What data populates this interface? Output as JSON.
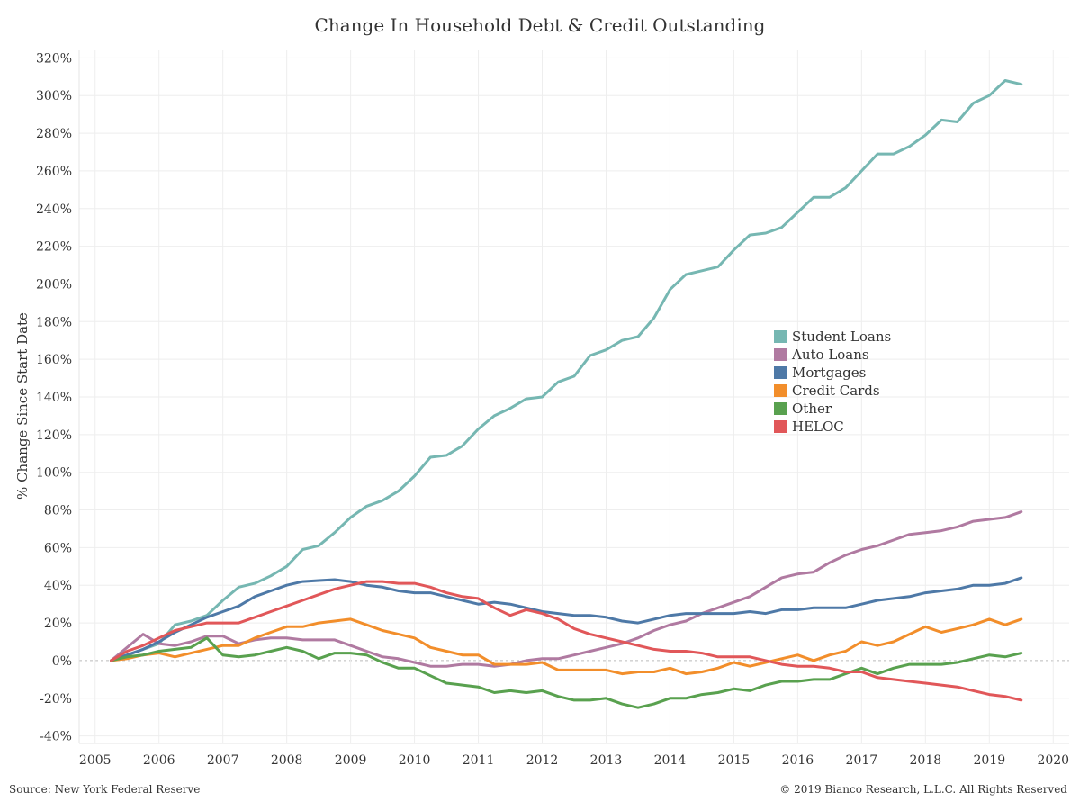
{
  "title": "Change In Household Debt & Credit Outstanding",
  "source": "Source: New York Federal Reserve",
  "copyright": "© 2019 Bianco Research, L.L.C. All Rights Reserved",
  "chart_data": {
    "type": "line",
    "title": "Change In Household Debt & Credit Outstanding",
    "ylabel": "% Change Since Start Date",
    "xlabel": "",
    "xlim": [
      2004.75,
      2020.25
    ],
    "ylim": [
      -44,
      324
    ],
    "x_ticks": [
      "2005",
      "2006",
      "2007",
      "2008",
      "2009",
      "2010",
      "2011",
      "2012",
      "2013",
      "2014",
      "2015",
      "2016",
      "2017",
      "2018",
      "2019",
      "2020"
    ],
    "y_ticks": [
      "320%",
      "300%",
      "280%",
      "260%",
      "240%",
      "220%",
      "200%",
      "180%",
      "160%",
      "140%",
      "120%",
      "100%",
      "80%",
      "60%",
      "40%",
      "20%",
      "0%",
      "-20%",
      "-40%"
    ],
    "grid": true,
    "legend_position": "right-middle",
    "series": [
      {
        "name": "Student Loans",
        "color": "#76b7b2",
        "x": [
          2005.25,
          2005.5,
          2005.75,
          2006,
          2006.25,
          2006.5,
          2006.75,
          2007,
          2007.25,
          2007.5,
          2007.75,
          2008,
          2008.25,
          2008.5,
          2008.75,
          2009,
          2009.25,
          2009.5,
          2009.75,
          2010,
          2010.25,
          2010.5,
          2010.75,
          2011,
          2011.25,
          2011.5,
          2011.75,
          2012,
          2012.25,
          2012.5,
          2012.75,
          2013,
          2013.25,
          2013.5,
          2013.75,
          2014,
          2014.25,
          2014.5,
          2014.75,
          2015,
          2015.25,
          2015.5,
          2015.75,
          2016,
          2016.25,
          2016.5,
          2016.75,
          2017,
          2017.25,
          2017.5,
          2017.75,
          2018,
          2018.25,
          2018.5,
          2018.75,
          2019,
          2019.25,
          2019.5
        ],
        "y": [
          0,
          3,
          6,
          9,
          19,
          21,
          24,
          32,
          39,
          41,
          45,
          50,
          59,
          61,
          68,
          76,
          82,
          85,
          90,
          98,
          108,
          109,
          114,
          123,
          130,
          134,
          139,
          140,
          148,
          151,
          162,
          165,
          170,
          172,
          182,
          197,
          205,
          207,
          209,
          218,
          226,
          227,
          230,
          238,
          246,
          246,
          251,
          260,
          269,
          269,
          273,
          279,
          287,
          286,
          296,
          300,
          308,
          306
        ]
      },
      {
        "name": "Auto Loans",
        "color": "#b07aa1",
        "x": [
          2005.25,
          2005.5,
          2005.75,
          2006,
          2006.25,
          2006.5,
          2006.75,
          2007,
          2007.25,
          2007.5,
          2007.75,
          2008,
          2008.25,
          2008.5,
          2008.75,
          2009,
          2009.25,
          2009.5,
          2009.75,
          2010,
          2010.25,
          2010.5,
          2010.75,
          2011,
          2011.25,
          2011.5,
          2011.75,
          2012,
          2012.25,
          2012.5,
          2012.75,
          2013,
          2013.25,
          2013.5,
          2013.75,
          2014,
          2014.25,
          2014.5,
          2014.75,
          2015,
          2015.25,
          2015.5,
          2015.75,
          2016,
          2016.25,
          2016.5,
          2016.75,
          2017,
          2017.25,
          2017.5,
          2017.75,
          2018,
          2018.25,
          2018.5,
          2018.75,
          2019,
          2019.25,
          2019.5
        ],
        "y": [
          0,
          7,
          14,
          9,
          8,
          10,
          13,
          13,
          9,
          11,
          12,
          12,
          11,
          11,
          11,
          8,
          5,
          2,
          1,
          -1,
          -3,
          -3,
          -2,
          -2,
          -3,
          -2,
          0,
          1,
          1,
          3,
          5,
          7,
          9,
          12,
          16,
          19,
          21,
          25,
          28,
          31,
          34,
          39,
          44,
          46,
          47,
          52,
          56,
          59,
          61,
          64,
          67,
          68,
          69,
          71,
          74,
          75,
          76,
          79
        ]
      },
      {
        "name": "Mortgages",
        "color": "#4e79a7",
        "x": [
          2005.25,
          2005.5,
          2005.75,
          2006,
          2006.25,
          2006.5,
          2006.75,
          2007,
          2007.25,
          2007.5,
          2007.75,
          2008,
          2008.25,
          2008.5,
          2008.75,
          2009,
          2009.25,
          2009.5,
          2009.75,
          2010,
          2010.25,
          2010.5,
          2010.75,
          2011,
          2011.25,
          2011.5,
          2011.75,
          2012,
          2012.25,
          2012.5,
          2012.75,
          2013,
          2013.25,
          2013.5,
          2013.75,
          2014,
          2014.25,
          2014.5,
          2014.75,
          2015,
          2015.25,
          2015.5,
          2015.75,
          2016,
          2016.25,
          2016.5,
          2016.75,
          2017,
          2017.25,
          2017.5,
          2017.75,
          2018,
          2018.25,
          2018.5,
          2018.75,
          2019,
          2019.25,
          2019.5
        ],
        "y": [
          0,
          3,
          6,
          10,
          15,
          19,
          23,
          26,
          29,
          34,
          37,
          40,
          42,
          42.5,
          43,
          42,
          40,
          39,
          37,
          36,
          36,
          34,
          32,
          30,
          31,
          30,
          28,
          26,
          25,
          24,
          24,
          23,
          21,
          20,
          22,
          24,
          25,
          25,
          25,
          25,
          26,
          25,
          27,
          27,
          28,
          28,
          28,
          30,
          32,
          33,
          34,
          36,
          37,
          38,
          40,
          40,
          41,
          44
        ]
      },
      {
        "name": "Credit Cards",
        "color": "#f28e2b",
        "x": [
          2005.25,
          2005.5,
          2005.75,
          2006,
          2006.25,
          2006.5,
          2006.75,
          2007,
          2007.25,
          2007.5,
          2007.75,
          2008,
          2008.25,
          2008.5,
          2008.75,
          2009,
          2009.25,
          2009.5,
          2009.75,
          2010,
          2010.25,
          2010.5,
          2010.75,
          2011,
          2011.25,
          2011.5,
          2011.75,
          2012,
          2012.25,
          2012.5,
          2012.75,
          2013,
          2013.25,
          2013.5,
          2013.75,
          2014,
          2014.25,
          2014.5,
          2014.75,
          2015,
          2015.25,
          2015.5,
          2015.75,
          2016,
          2016.25,
          2016.5,
          2016.75,
          2017,
          2017.25,
          2017.5,
          2017.75,
          2018,
          2018.25,
          2018.5,
          2018.75,
          2019,
          2019.25,
          2019.5
        ],
        "y": [
          0,
          1,
          3,
          4,
          2,
          4,
          6,
          8,
          8,
          12,
          15,
          18,
          18,
          20,
          21,
          22,
          19,
          16,
          14,
          12,
          7,
          5,
          3,
          3,
          -2,
          -2,
          -2,
          -1,
          -5,
          -5,
          -5,
          -5,
          -7,
          -6,
          -6,
          -4,
          -7,
          -6,
          -4,
          -1,
          -3,
          -1,
          1,
          3,
          0,
          3,
          5,
          10,
          8,
          10,
          14,
          18,
          15,
          17,
          19,
          22,
          19,
          22
        ]
      },
      {
        "name": "Other",
        "color": "#59a14f",
        "x": [
          2005.25,
          2005.5,
          2005.75,
          2006,
          2006.25,
          2006.5,
          2006.75,
          2007,
          2007.25,
          2007.5,
          2007.75,
          2008,
          2008.25,
          2008.5,
          2008.75,
          2009,
          2009.25,
          2009.5,
          2009.75,
          2010,
          2010.25,
          2010.5,
          2010.75,
          2011,
          2011.25,
          2011.5,
          2011.75,
          2012,
          2012.25,
          2012.5,
          2012.75,
          2013,
          2013.25,
          2013.5,
          2013.75,
          2014,
          2014.25,
          2014.5,
          2014.75,
          2015,
          2015.25,
          2015.5,
          2015.75,
          2016,
          2016.25,
          2016.5,
          2016.75,
          2017,
          2017.25,
          2017.5,
          2017.75,
          2018,
          2018.25,
          2018.5,
          2018.75,
          2019,
          2019.25,
          2019.5
        ],
        "y": [
          0,
          2,
          3,
          5,
          6,
          7,
          12,
          3,
          2,
          3,
          5,
          7,
          5,
          1,
          4,
          4,
          3,
          -1,
          -4,
          -4,
          -8,
          -12,
          -13,
          -14,
          -17,
          -16,
          -17,
          -16,
          -19,
          -21,
          -21,
          -20,
          -23,
          -25,
          -23,
          -20,
          -20,
          -18,
          -17,
          -15,
          -16,
          -13,
          -11,
          -11,
          -10,
          -10,
          -7,
          -4,
          -7,
          -4,
          -2,
          -2,
          -2,
          -1,
          1,
          3,
          2,
          4
        ]
      },
      {
        "name": "HELOC",
        "color": "#e15759",
        "x": [
          2005.25,
          2005.5,
          2005.75,
          2006,
          2006.25,
          2006.5,
          2006.75,
          2007,
          2007.25,
          2007.5,
          2007.75,
          2008,
          2008.25,
          2008.5,
          2008.75,
          2009,
          2009.25,
          2009.5,
          2009.75,
          2010,
          2010.25,
          2010.5,
          2010.75,
          2011,
          2011.25,
          2011.5,
          2011.75,
          2012,
          2012.25,
          2012.5,
          2012.75,
          2013,
          2013.25,
          2013.5,
          2013.75,
          2014,
          2014.25,
          2014.5,
          2014.75,
          2015,
          2015.25,
          2015.5,
          2015.75,
          2016,
          2016.25,
          2016.5,
          2016.75,
          2017,
          2017.25,
          2017.5,
          2017.75,
          2018,
          2018.25,
          2018.5,
          2018.75,
          2019,
          2019.25,
          2019.5
        ],
        "y": [
          0,
          5,
          8,
          12,
          16,
          18,
          20,
          20,
          20,
          23,
          26,
          29,
          32,
          35,
          38,
          40,
          42,
          42,
          41,
          41,
          39,
          36,
          34,
          33,
          28,
          24,
          27,
          25,
          22,
          17,
          14,
          12,
          10,
          8,
          6,
          5,
          5,
          4,
          2,
          2,
          2,
          0,
          -2,
          -3,
          -3,
          -4,
          -6,
          -6,
          -9,
          -10,
          -11,
          -12,
          -13,
          -14,
          -16,
          -18,
          -19,
          -21
        ]
      }
    ]
  }
}
